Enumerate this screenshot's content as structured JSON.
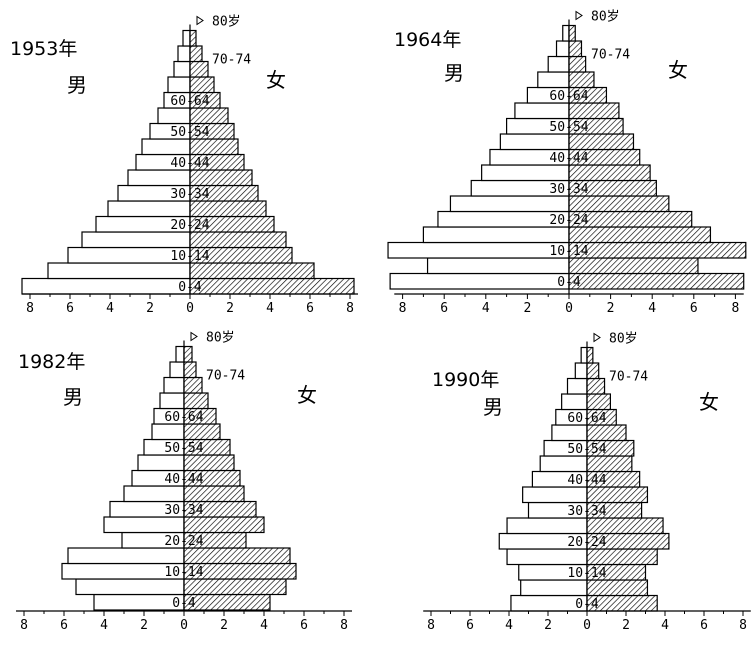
{
  "chart_data": [
    {
      "type": "population-pyramid",
      "title": "1953年",
      "left_label": "男",
      "right_label": "女",
      "x_ticks": [
        "8",
        "6",
        "4",
        "2",
        "0",
        "2",
        "4",
        "6",
        "8"
      ],
      "xlim": [
        -8,
        8
      ],
      "age_groups": [
        "0-4",
        "5-9",
        "10-14",
        "15-19",
        "20-24",
        "25-29",
        "30-34",
        "35-39",
        "40-44",
        "45-49",
        "50-54",
        "55-59",
        "60-64",
        "65-69",
        "70-74",
        "75-79",
        "80岁"
      ],
      "labeled_ages": [
        "0-4",
        "10-14",
        "20-24",
        "30-34",
        "40-44",
        "50-54",
        "60-64",
        "70-74",
        "80岁"
      ],
      "male": [
        8.4,
        7.1,
        6.1,
        5.4,
        4.7,
        4.1,
        3.6,
        3.1,
        2.7,
        2.4,
        2.0,
        1.6,
        1.3,
        1.1,
        0.8,
        0.6,
        0.35
      ],
      "female": [
        8.2,
        6.2,
        5.1,
        4.8,
        4.2,
        3.8,
        3.4,
        3.1,
        2.7,
        2.4,
        2.2,
        1.9,
        1.5,
        1.2,
        0.9,
        0.6,
        0.3
      ]
    },
    {
      "type": "population-pyramid",
      "title": "1964年",
      "left_label": "男",
      "right_label": "女",
      "x_ticks": [
        "8",
        "6",
        "4",
        "2",
        "0",
        "2",
        "4",
        "6",
        "8"
      ],
      "xlim": [
        -8,
        8
      ],
      "age_groups": [
        "0-4",
        "5-9",
        "10-14",
        "15-19",
        "20-24",
        "25-29",
        "30-34",
        "35-39",
        "40-44",
        "45-49",
        "50-54",
        "55-59",
        "60-64",
        "65-69",
        "70-74",
        "75-79",
        "80岁"
      ],
      "labeled_ages": [
        "0-4",
        "10-14",
        "20-24",
        "30-34",
        "40-44",
        "50-54",
        "60-64",
        "70-74",
        "80岁"
      ],
      "male": [
        8.6,
        6.8,
        8.7,
        7.0,
        6.3,
        5.7,
        4.7,
        4.2,
        3.8,
        3.3,
        3.0,
        2.6,
        2.0,
        1.5,
        1.0,
        0.6,
        0.3
      ],
      "female": [
        8.4,
        6.2,
        8.5,
        6.8,
        5.9,
        4.8,
        4.2,
        3.9,
        3.4,
        3.1,
        2.6,
        2.4,
        1.8,
        1.2,
        0.8,
        0.6,
        0.3
      ]
    },
    {
      "type": "population-pyramid",
      "title": "1982年",
      "left_label": "男",
      "right_label": "女",
      "x_ticks": [
        "8",
        "6",
        "4",
        "2",
        "0",
        "2",
        "4",
        "6",
        "8"
      ],
      "xlim": [
        -8,
        8
      ],
      "age_groups": [
        "0-4",
        "5-9",
        "10-14",
        "15-19",
        "20-24",
        "25-29",
        "30-34",
        "35-39",
        "40-44",
        "45-49",
        "50-54",
        "55-59",
        "60-64",
        "65-69",
        "70-74",
        "75-79",
        "80岁"
      ],
      "labeled_ages": [
        "0-4",
        "10-14",
        "20-24",
        "30-34",
        "40-44",
        "50-54",
        "60-64",
        "70-74",
        "80岁"
      ],
      "male": [
        4.5,
        5.4,
        6.1,
        5.8,
        3.1,
        4.0,
        3.7,
        3.0,
        2.6,
        2.3,
        2.0,
        1.6,
        1.5,
        1.2,
        1.0,
        0.7,
        0.4
      ],
      "female": [
        4.3,
        5.1,
        5.6,
        5.3,
        3.1,
        4.0,
        3.6,
        3.0,
        2.8,
        2.5,
        2.3,
        1.8,
        1.6,
        1.2,
        0.9,
        0.6,
        0.4
      ]
    },
    {
      "type": "population-pyramid",
      "title": "1990年",
      "left_label": "男",
      "right_label": "女",
      "x_ticks": [
        "8",
        "6",
        "4",
        "2",
        "0",
        "2",
        "4",
        "6",
        "8"
      ],
      "xlim": [
        -8,
        8
      ],
      "age_groups": [
        "0-4",
        "5-9",
        "10-14",
        "15-19",
        "20-24",
        "25-29",
        "30-34",
        "35-39",
        "40-44",
        "45-49",
        "50-54",
        "55-59",
        "60-64",
        "65-69",
        "70-74",
        "75-79",
        "80岁"
      ],
      "labeled_ages": [
        "0-4",
        "10-14",
        "20-24",
        "30-34",
        "40-44",
        "50-54",
        "60-64",
        "70-74",
        "80岁"
      ],
      "male": [
        3.9,
        3.4,
        3.5,
        4.1,
        4.5,
        4.1,
        3.0,
        3.3,
        2.8,
        2.4,
        2.2,
        1.8,
        1.6,
        1.3,
        1.0,
        0.6,
        0.3
      ],
      "female": [
        3.6,
        3.1,
        3.0,
        3.6,
        4.2,
        3.9,
        2.8,
        3.1,
        2.7,
        2.3,
        2.4,
        2.0,
        1.5,
        1.2,
        0.9,
        0.6,
        0.3
      ]
    }
  ]
}
